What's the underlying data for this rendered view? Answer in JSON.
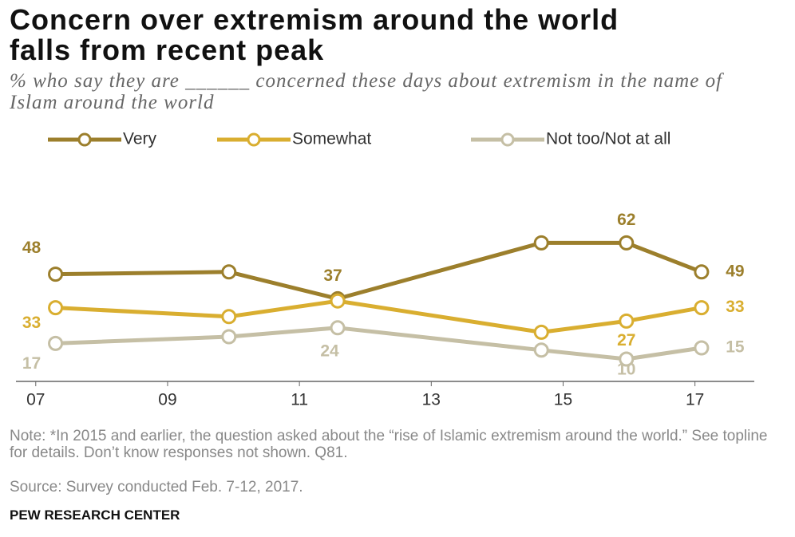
{
  "chart_data": {
    "type": "line",
    "title": "Concern over extremism around the world falls from recent peak",
    "subtitle": "% who say they are ______ concerned these days about extremism in the name of Islam around the world",
    "x": [
      2007.3,
      2009.93,
      2011.58,
      2014.67,
      2015.96,
      2017.1
    ],
    "xlim": [
      2006.7,
      2017.9
    ],
    "xticks": [
      {
        "value": 2007,
        "label": "07"
      },
      {
        "value": 2009,
        "label": "09"
      },
      {
        "value": 2011,
        "label": "11"
      },
      {
        "value": 2013,
        "label": "13"
      },
      {
        "value": 2015,
        "label": "15"
      },
      {
        "value": 2017,
        "label": "17"
      }
    ],
    "ylim": [
      0,
      80
    ],
    "series": [
      {
        "name": "Very",
        "color": "#9c7f2c",
        "values": [
          48,
          49,
          37,
          62,
          62,
          49
        ],
        "value_labels": [
          "48",
          null,
          "37",
          null,
          "62",
          "49"
        ]
      },
      {
        "name": "Somewhat",
        "color": "#d9ae30",
        "values": [
          33,
          29,
          36,
          22,
          27,
          33
        ],
        "value_labels": [
          "33",
          null,
          null,
          null,
          "27",
          "33"
        ]
      },
      {
        "name": "Not too/Not at all",
        "color": "#c5bfa5",
        "values": [
          17,
          20,
          24,
          14,
          10,
          15
        ],
        "value_labels": [
          "17",
          null,
          "24",
          null,
          "10",
          "15"
        ]
      }
    ],
    "note": "Note: *In 2015 and earlier, the question asked about the “rise of Islamic extremism around the world.” See topline for details. Don’t know responses not shown. Q81.",
    "source": "Source: Survey conducted Feb. 7-12, 2017.",
    "credit": "PEW RESEARCH CENTER"
  }
}
